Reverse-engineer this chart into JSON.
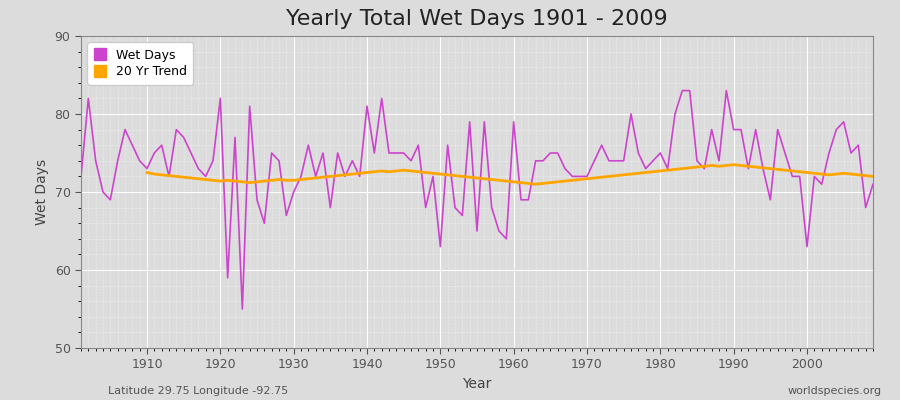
{
  "title": "Yearly Total Wet Days 1901 - 2009",
  "xlabel": "Year",
  "ylabel": "Wet Days",
  "subtitle_left": "Latitude 29.75 Longitude -92.75",
  "subtitle_right": "worldspecies.org",
  "years": [
    1901,
    1902,
    1903,
    1904,
    1905,
    1906,
    1907,
    1908,
    1909,
    1910,
    1911,
    1912,
    1913,
    1914,
    1915,
    1916,
    1917,
    1918,
    1919,
    1920,
    1921,
    1922,
    1923,
    1924,
    1925,
    1926,
    1927,
    1928,
    1929,
    1930,
    1931,
    1932,
    1933,
    1934,
    1935,
    1936,
    1937,
    1938,
    1939,
    1940,
    1941,
    1942,
    1943,
    1944,
    1945,
    1946,
    1947,
    1948,
    1949,
    1950,
    1951,
    1952,
    1953,
    1954,
    1955,
    1956,
    1957,
    1958,
    1959,
    1960,
    1961,
    1962,
    1963,
    1964,
    1965,
    1966,
    1967,
    1968,
    1969,
    1970,
    1971,
    1972,
    1973,
    1974,
    1975,
    1976,
    1977,
    1978,
    1979,
    1980,
    1981,
    1982,
    1983,
    1984,
    1985,
    1986,
    1987,
    1988,
    1989,
    1990,
    1991,
    1992,
    1993,
    1994,
    1995,
    1996,
    1997,
    1998,
    1999,
    2000,
    2001,
    2002,
    2003,
    2004,
    2005,
    2006,
    2007,
    2008,
    2009
  ],
  "wet_days": [
    72,
    82,
    74,
    70,
    69,
    74,
    78,
    76,
    74,
    73,
    75,
    76,
    72,
    78,
    77,
    75,
    73,
    72,
    74,
    82,
    59,
    77,
    55,
    81,
    69,
    66,
    75,
    74,
    67,
    70,
    72,
    76,
    72,
    75,
    68,
    75,
    72,
    74,
    72,
    81,
    75,
    82,
    75,
    75,
    75,
    74,
    76,
    68,
    72,
    63,
    76,
    68,
    67,
    79,
    65,
    79,
    68,
    65,
    64,
    79,
    69,
    69,
    74,
    74,
    75,
    75,
    73,
    72,
    72,
    72,
    74,
    76,
    74,
    74,
    74,
    80,
    75,
    73,
    74,
    75,
    73,
    80,
    83,
    83,
    74,
    73,
    78,
    74,
    83,
    78,
    78,
    73,
    78,
    73,
    69,
    78,
    75,
    72,
    72,
    63,
    72,
    71,
    75,
    78,
    79,
    75,
    76,
    68,
    71
  ],
  "trend_years": [
    1910,
    1911,
    1912,
    1913,
    1914,
    1915,
    1916,
    1917,
    1918,
    1919,
    1920,
    1921,
    1922,
    1923,
    1924,
    1925,
    1926,
    1927,
    1928,
    1929,
    1930,
    1931,
    1932,
    1933,
    1934,
    1935,
    1936,
    1937,
    1938,
    1939,
    1940,
    1941,
    1942,
    1943,
    1944,
    1945,
    1946,
    1947,
    1948,
    1949,
    1950,
    1951,
    1952,
    1953,
    1954,
    1955,
    1956,
    1957,
    1958,
    1959,
    1960,
    1961,
    1962,
    1963,
    1964,
    1965,
    1966,
    1967,
    1968,
    1969,
    1970,
    1971,
    1972,
    1973,
    1974,
    1975,
    1976,
    1977,
    1978,
    1979,
    1980,
    1981,
    1982,
    1983,
    1984,
    1985,
    1986,
    1987,
    1988,
    1989,
    1990,
    1991,
    1992,
    1993,
    1994,
    1995,
    1996,
    1997,
    1998,
    1999,
    2000,
    2001,
    2002,
    2003,
    2004,
    2005,
    2006,
    2007,
    2008,
    2009
  ],
  "trend_values": [
    72.5,
    72.3,
    72.2,
    72.1,
    72.0,
    71.9,
    71.8,
    71.7,
    71.6,
    71.5,
    71.4,
    71.5,
    71.4,
    71.3,
    71.2,
    71.3,
    71.4,
    71.5,
    71.6,
    71.5,
    71.5,
    71.6,
    71.7,
    71.8,
    71.9,
    72.0,
    72.1,
    72.2,
    72.3,
    72.4,
    72.5,
    72.6,
    72.7,
    72.6,
    72.7,
    72.8,
    72.7,
    72.6,
    72.5,
    72.4,
    72.3,
    72.2,
    72.1,
    72.0,
    71.9,
    71.8,
    71.7,
    71.6,
    71.5,
    71.4,
    71.3,
    71.2,
    71.1,
    71.0,
    71.1,
    71.2,
    71.3,
    71.4,
    71.5,
    71.6,
    71.7,
    71.8,
    71.9,
    72.0,
    72.1,
    72.2,
    72.3,
    72.4,
    72.5,
    72.6,
    72.7,
    72.8,
    72.9,
    73.0,
    73.1,
    73.2,
    73.3,
    73.4,
    73.3,
    73.4,
    73.5,
    73.4,
    73.3,
    73.2,
    73.1,
    73.0,
    72.9,
    72.8,
    72.7,
    72.6,
    72.5,
    72.4,
    72.3,
    72.2,
    72.3,
    72.4,
    72.3,
    72.2,
    72.1,
    72.0
  ],
  "wet_days_color": "#CC44CC",
  "trend_color": "#FFA500",
  "bg_color": "#DCDCDC",
  "plot_bg_color": "#DCDCDC",
  "grid_color": "#FFFFFF",
  "ylim": [
    50,
    90
  ],
  "xlim": [
    1901,
    2009
  ],
  "yticks": [
    50,
    60,
    70,
    80,
    90
  ],
  "xticks": [
    1910,
    1920,
    1930,
    1940,
    1950,
    1960,
    1970,
    1980,
    1990,
    2000
  ],
  "title_fontsize": 16,
  "axis_label_fontsize": 10,
  "tick_fontsize": 9,
  "legend_fontsize": 9,
  "wet_days_linewidth": 1.2,
  "trend_linewidth": 2.0
}
